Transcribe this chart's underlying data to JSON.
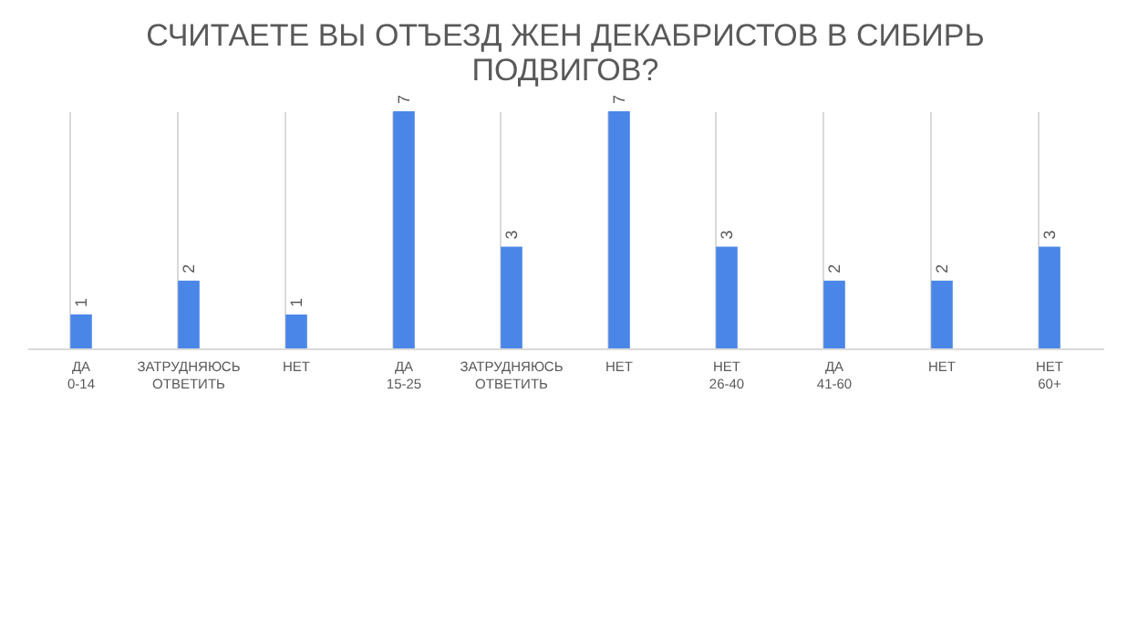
{
  "chart_data": {
    "type": "bar",
    "title": "СЧИТАЕТЕ ВЫ ОТЪЕЗД ЖЕН ДЕКАБРИСТОВ В СИБИРЬ ПОДВИГОВ?",
    "categories": [
      "ДА 0-14",
      "ЗАТРУДНЯЮСЬ ОТВЕТИТЬ",
      "НЕТ",
      "ДА 15-25",
      "ЗАТРУДНЯЮСЬ ОТВЕТИТЬ",
      "НЕТ",
      "НЕТ 26-40",
      "ДА 41-60",
      "НЕТ",
      "НЕТ 60+"
    ],
    "values": [
      1,
      2,
      1,
      7,
      3,
      7,
      3,
      2,
      2,
      3
    ],
    "color": "#4a86e8",
    "data_labels": true,
    "grid": "x"
  }
}
